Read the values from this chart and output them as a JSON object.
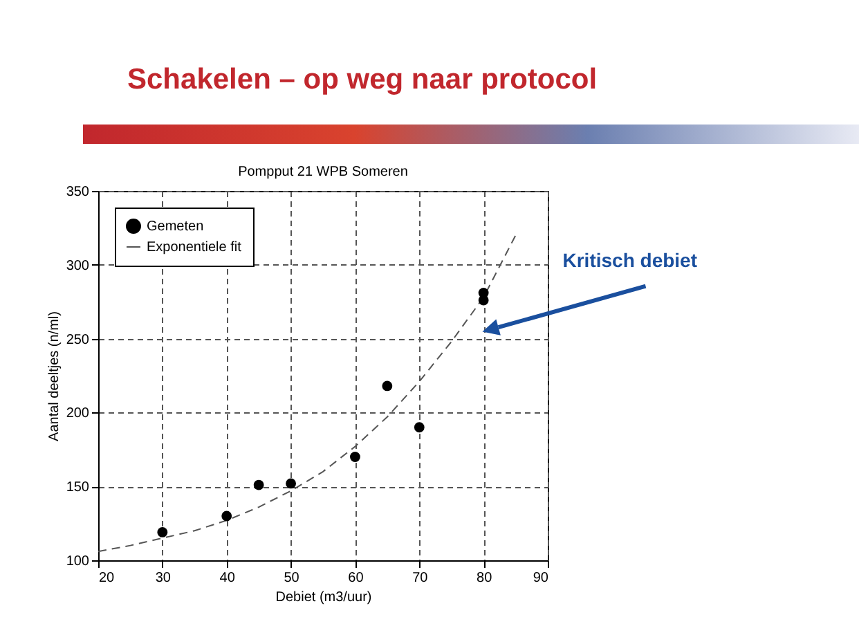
{
  "chart_data": {
    "type": "scatter",
    "title": "Schakelen – op weg naar protocol",
    "subtitle": "Pompput 21 WPB Someren",
    "xlabel": "Debiet (m3/uur)",
    "ylabel": "Aantal deeltjes (n/ml)",
    "series": [
      {
        "name": "Gemeten",
        "color": "#000000",
        "marker": "circle",
        "x": [
          30,
          40,
          45,
          50,
          60,
          65,
          70,
          80,
          80
        ],
        "values": [
          119,
          130,
          151,
          152,
          170,
          218,
          190,
          281,
          276
        ]
      },
      {
        "name": "Exponentiele fit",
        "type": "line",
        "color": "#555555",
        "line_style": "dashed",
        "x": [
          20,
          25,
          30,
          35,
          40,
          45,
          50,
          55,
          60,
          65,
          70,
          75,
          80,
          85
        ],
        "values": [
          106,
          110,
          115,
          120,
          127,
          136,
          147,
          160,
          177,
          197,
          221,
          248,
          278,
          320
        ]
      }
    ],
    "xlim": [
      20,
      90
    ],
    "xticks": [
      20,
      30,
      40,
      50,
      60,
      70,
      80,
      90
    ],
    "ylim": [
      100,
      350
    ],
    "yticks": [
      100,
      150,
      200,
      250,
      300,
      350
    ],
    "grid": true,
    "legend": "top left",
    "annotations": [
      "Kritisch debiet"
    ]
  }
}
